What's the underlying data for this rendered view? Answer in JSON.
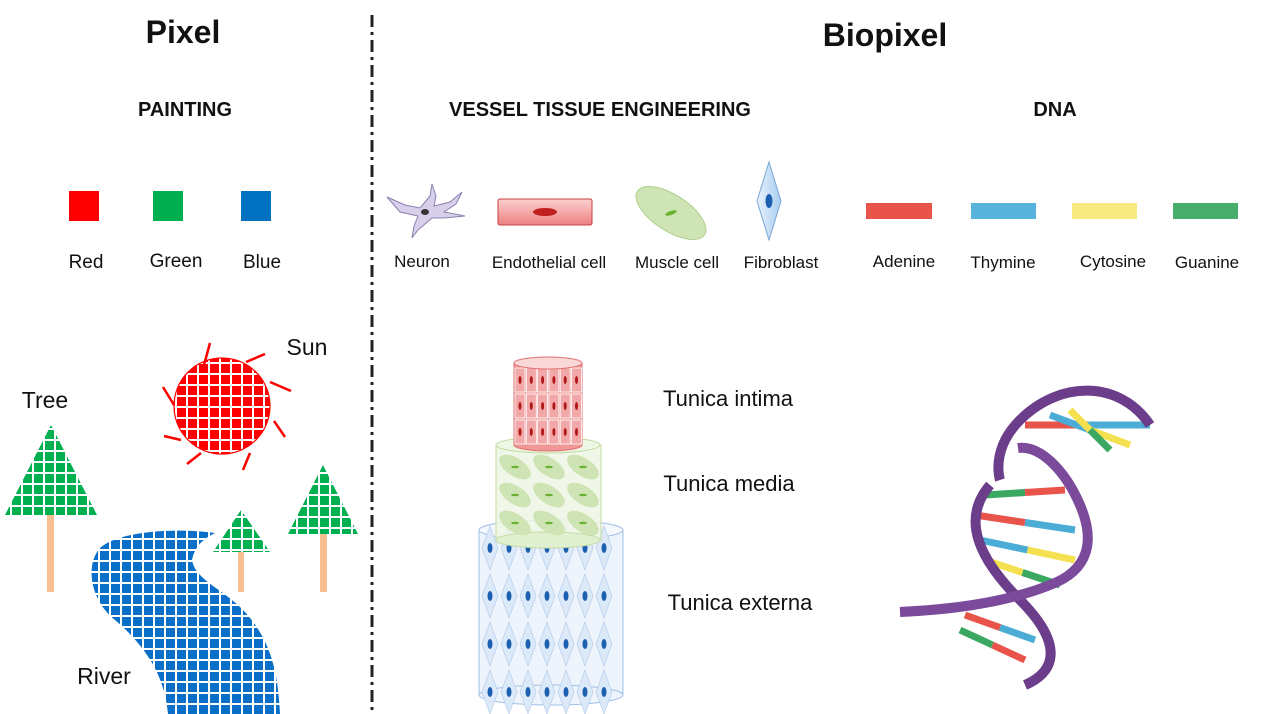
{
  "left": {
    "title": "Pixel",
    "section": "PAINTING",
    "pixels": [
      {
        "label": "Red",
        "color": "#ff0000"
      },
      {
        "label": "Green",
        "color": "#00b050"
      },
      {
        "label": "Blue",
        "color": "#0070c0"
      }
    ],
    "scene_labels": {
      "sun": "Sun",
      "tree": "Tree",
      "river": "River"
    }
  },
  "right": {
    "title": "Biopixel",
    "vessel": {
      "section": "VESSEL TISSUE ENGINEERING",
      "cells": [
        {
          "label": "Neuron",
          "icon": "neuron-icon"
        },
        {
          "label": "Endothelial cell",
          "icon": "endothelial-cell-icon"
        },
        {
          "label": "Muscle cell",
          "icon": "muscle-cell-icon"
        },
        {
          "label": "Fibroblast",
          "icon": "fibroblast-icon"
        }
      ],
      "layers": [
        "Tunica intima",
        "Tunica media",
        "Tunica externa"
      ]
    },
    "dna": {
      "section": "DNA",
      "bases": [
        {
          "label": "Adenine",
          "color": "#e8544a"
        },
        {
          "label": "Thymine",
          "color": "#4bacd6"
        },
        {
          "label": "Cytosine",
          "color": "#f5e050"
        },
        {
          "label": "Guanine",
          "color": "#3aa860"
        }
      ],
      "backbone_color": "#6b3d8a"
    }
  }
}
